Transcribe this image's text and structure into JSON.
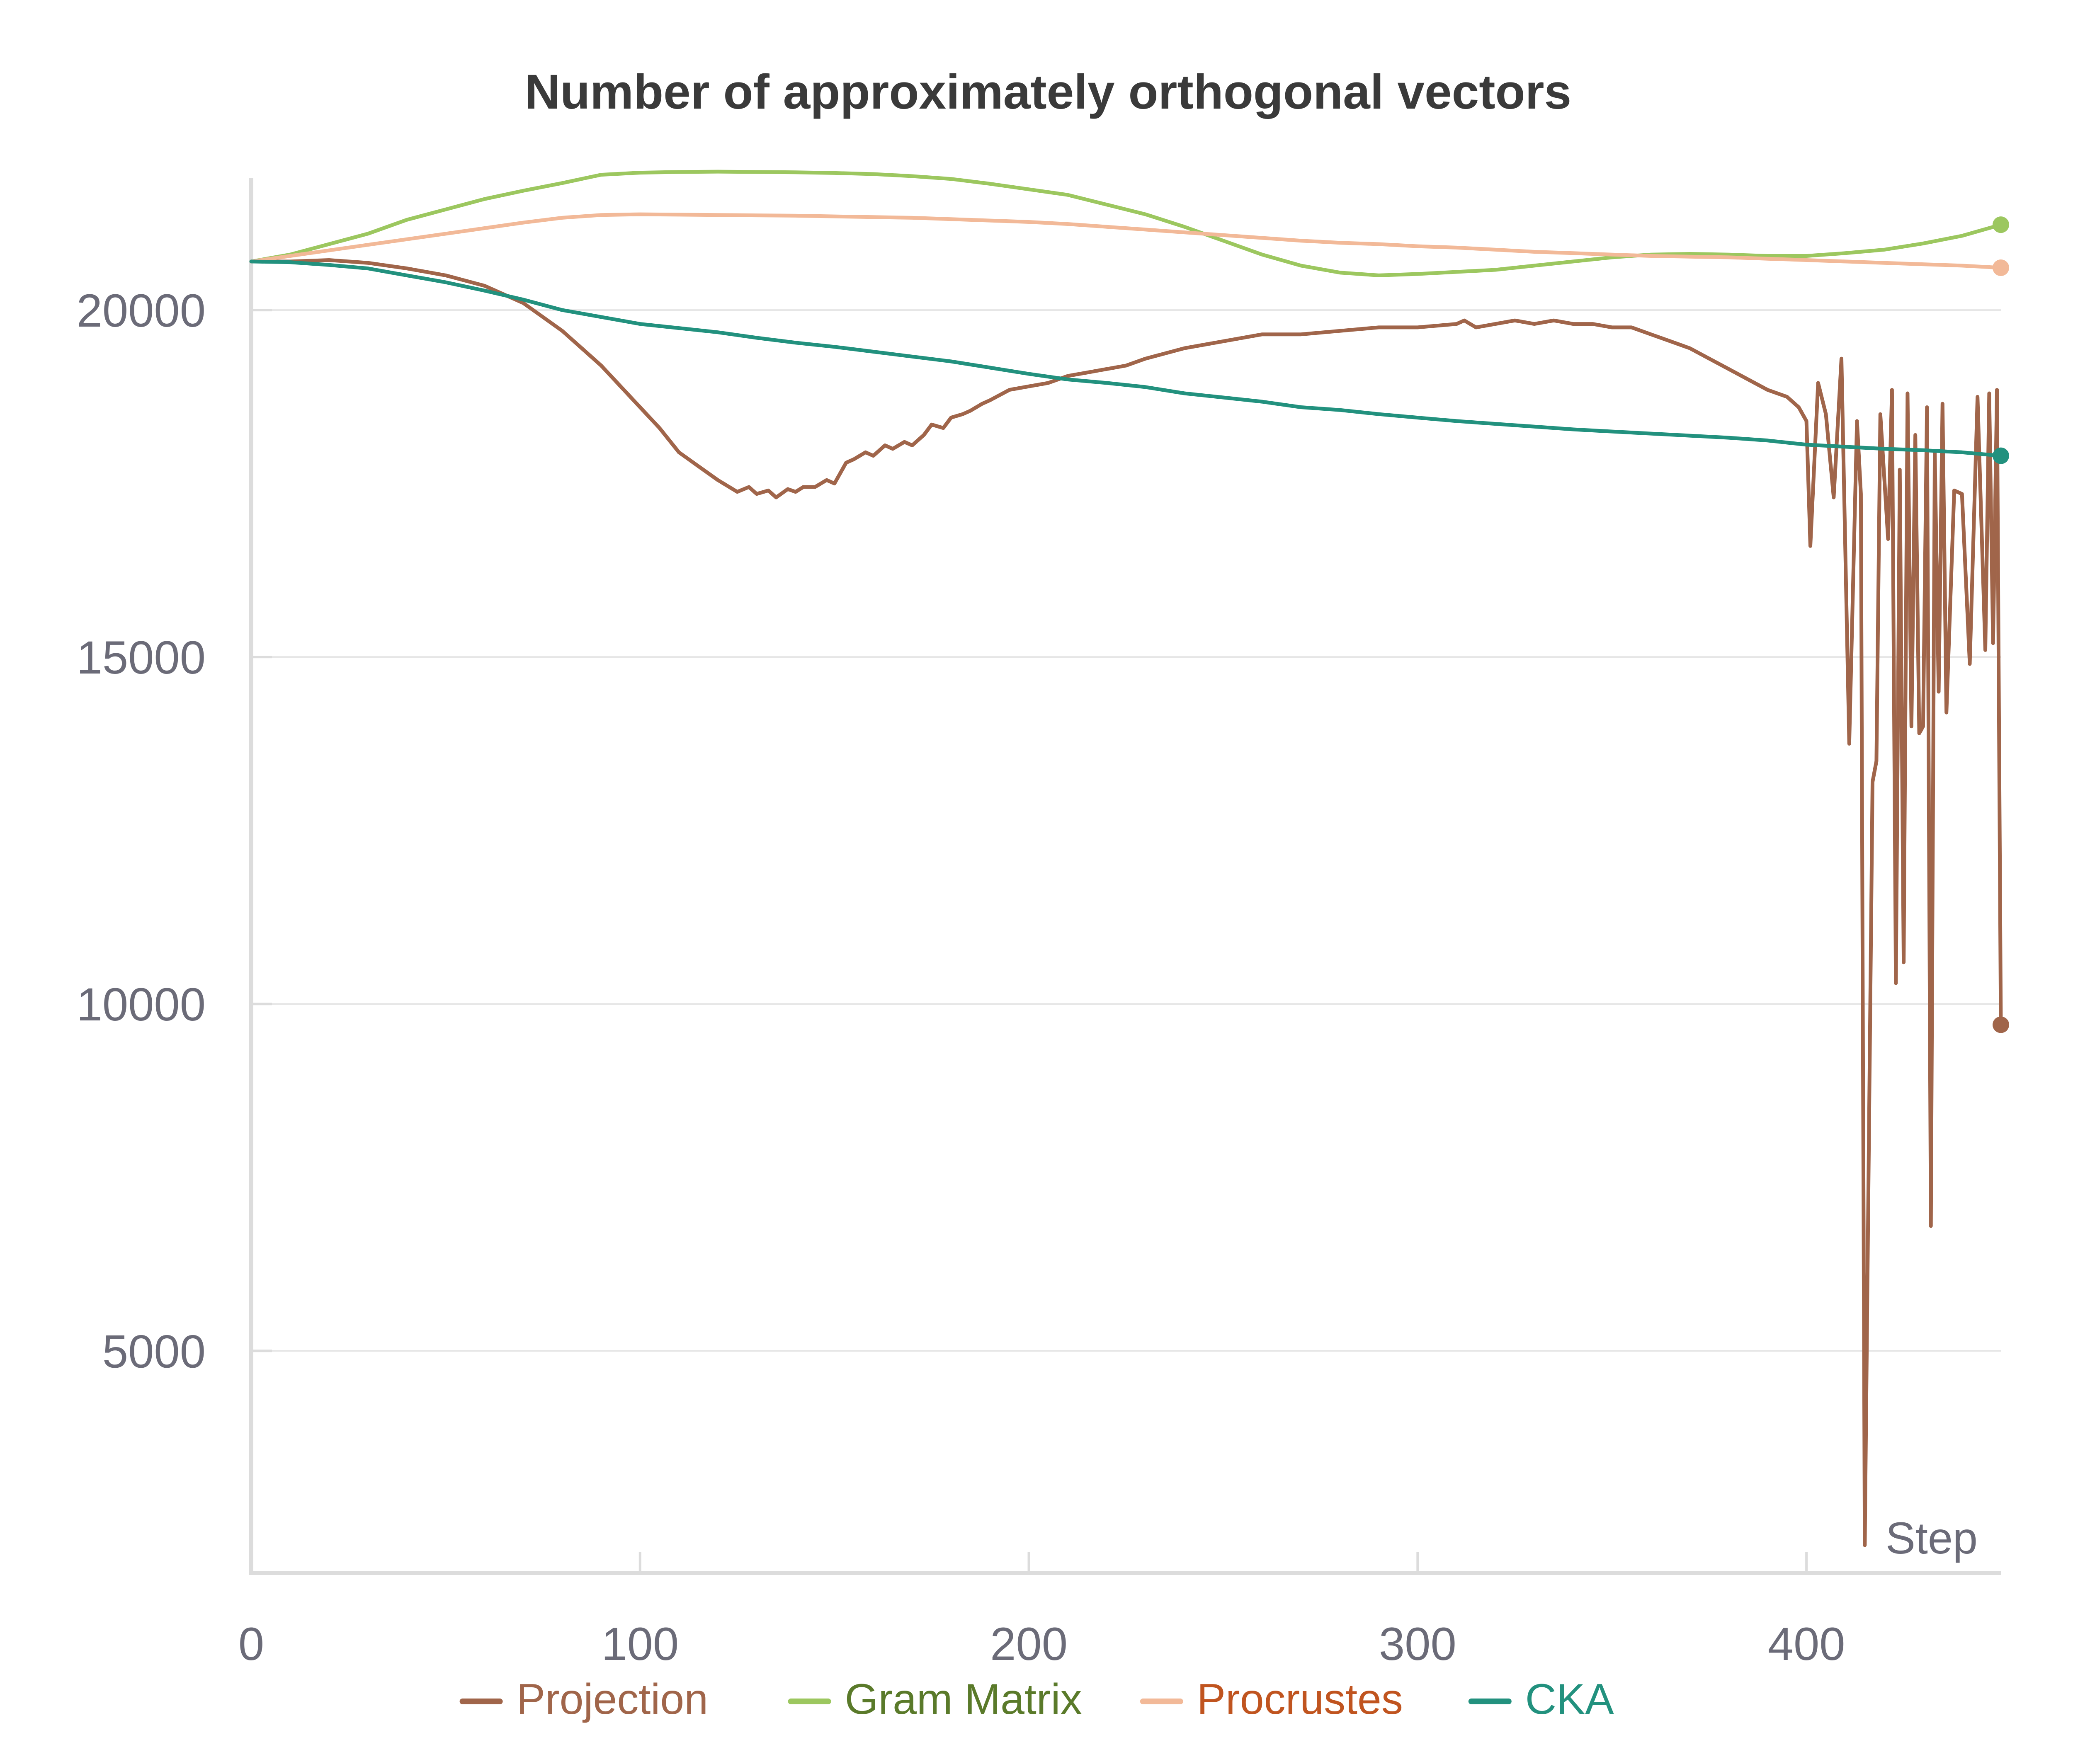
{
  "chart_data": {
    "type": "line",
    "title": "Number of approximately orthogonal vectors",
    "xlabel": "Step",
    "ylabel": "",
    "xlim": [
      0,
      450
    ],
    "ylim": [
      1800,
      21900
    ],
    "x_ticks": [
      0,
      100,
      200,
      300,
      400
    ],
    "y_ticks": [
      5000,
      10000,
      15000,
      20000
    ],
    "x_tick_labels": [
      "0",
      "100",
      "200",
      "300",
      "400"
    ],
    "y_tick_labels": [
      "5000",
      "10000",
      "15000",
      "20000"
    ],
    "grid": "horizontal",
    "legend_position": "bottom",
    "series": [
      {
        "name": "Projection",
        "color": "#a0654a",
        "legend_text_color": "#a0654a",
        "x": [
          0,
          10,
          20,
          30,
          40,
          50,
          60,
          70,
          80,
          90,
          100,
          105,
          110,
          115,
          120,
          125,
          128,
          130,
          133,
          135,
          138,
          140,
          142,
          145,
          148,
          150,
          153,
          155,
          158,
          160,
          163,
          165,
          168,
          170,
          173,
          175,
          178,
          180,
          183,
          185,
          188,
          190,
          195,
          200,
          205,
          210,
          215,
          220,
          225,
          230,
          240,
          250,
          260,
          270,
          280,
          290,
          300,
          310,
          312,
          315,
          320,
          325,
          330,
          335,
          340,
          345,
          350,
          355,
          360,
          365,
          370,
          375,
          380,
          385,
          390,
          395,
          398,
          400,
          401,
          403,
          405,
          407,
          409,
          411,
          413,
          414,
          415,
          417,
          418,
          419,
          421,
          422,
          423,
          424,
          425,
          426,
          427,
          428,
          429,
          430,
          431,
          432,
          433,
          434,
          435,
          436,
          438,
          440,
          442,
          444,
          446,
          447,
          448,
          449,
          450
        ],
        "y": [
          20700,
          20700,
          20720,
          20680,
          20600,
          20500,
          20350,
          20100,
          19700,
          19200,
          18600,
          18300,
          17950,
          17750,
          17550,
          17380,
          17450,
          17350,
          17400,
          17300,
          17420,
          17380,
          17450,
          17450,
          17550,
          17500,
          17800,
          17850,
          17950,
          17900,
          18050,
          18000,
          18100,
          18050,
          18200,
          18350,
          18300,
          18450,
          18500,
          18550,
          18650,
          18700,
          18850,
          18900,
          18950,
          19050,
          19100,
          19150,
          19200,
          19300,
          19450,
          19550,
          19650,
          19650,
          19700,
          19750,
          19750,
          19800,
          19850,
          19750,
          19800,
          19850,
          19800,
          19850,
          19800,
          19800,
          19750,
          19750,
          19650,
          19550,
          19450,
          19300,
          19150,
          19000,
          18850,
          18750,
          18600,
          18400,
          16600,
          18950,
          18500,
          17300,
          19300,
          13750,
          18400,
          17350,
          2200,
          13200,
          13500,
          18500,
          16700,
          18850,
          10300,
          17700,
          10600,
          18800,
          14000,
          18200,
          13900,
          14000,
          18600,
          6800,
          17950,
          14500,
          18650,
          14200,
          17400,
          17350,
          14900,
          18750,
          15100,
          18800,
          15200,
          18850,
          9700
        ]
      },
      {
        "name": "Gram Matrix",
        "color": "#9cc75f",
        "legend_text_color": "#5a7a2a",
        "x": [
          0,
          10,
          20,
          30,
          40,
          50,
          60,
          70,
          80,
          90,
          100,
          110,
          120,
          130,
          140,
          150,
          160,
          170,
          180,
          190,
          200,
          210,
          220,
          230,
          240,
          250,
          260,
          270,
          280,
          290,
          300,
          310,
          320,
          330,
          340,
          350,
          360,
          370,
          380,
          390,
          400,
          410,
          420,
          430,
          440,
          450
        ],
        "y": [
          20700,
          20800,
          20950,
          21100,
          21300,
          21450,
          21600,
          21720,
          21830,
          21950,
          21980,
          21990,
          21995,
          21990,
          21985,
          21975,
          21960,
          21930,
          21890,
          21820,
          21740,
          21660,
          21520,
          21380,
          21200,
          21000,
          20800,
          20640,
          20540,
          20500,
          20520,
          20550,
          20580,
          20640,
          20700,
          20760,
          20800,
          20810,
          20800,
          20780,
          20780,
          20820,
          20870,
          20960,
          21070,
          21230
        ]
      },
      {
        "name": "Procrustes",
        "color": "#f2b998",
        "legend_text_color": "#c0541f",
        "x": [
          0,
          10,
          20,
          30,
          40,
          50,
          60,
          70,
          80,
          90,
          100,
          110,
          120,
          130,
          140,
          150,
          160,
          170,
          180,
          190,
          200,
          210,
          220,
          230,
          240,
          250,
          260,
          270,
          280,
          290,
          300,
          310,
          320,
          330,
          340,
          350,
          360,
          370,
          380,
          390,
          400,
          410,
          420,
          430,
          440,
          450
        ],
        "y": [
          20700,
          20780,
          20860,
          20940,
          21020,
          21100,
          21180,
          21260,
          21330,
          21370,
          21380,
          21375,
          21370,
          21365,
          21360,
          21350,
          21340,
          21330,
          21310,
          21290,
          21270,
          21240,
          21200,
          21160,
          21120,
          21080,
          21040,
          21000,
          20970,
          20950,
          20920,
          20900,
          20870,
          20840,
          20820,
          20800,
          20780,
          20770,
          20760,
          20740,
          20720,
          20700,
          20680,
          20660,
          20640,
          20610
        ]
      },
      {
        "name": "CKA",
        "color": "#22917e",
        "legend_text_color": "#22917e",
        "x": [
          0,
          10,
          20,
          30,
          40,
          50,
          60,
          70,
          80,
          90,
          100,
          110,
          120,
          130,
          140,
          150,
          160,
          170,
          180,
          190,
          200,
          210,
          220,
          230,
          240,
          250,
          260,
          270,
          280,
          290,
          300,
          310,
          320,
          330,
          340,
          350,
          360,
          370,
          380,
          390,
          400,
          410,
          420,
          430,
          440,
          450
        ],
        "y": [
          20700,
          20690,
          20650,
          20600,
          20500,
          20400,
          20280,
          20150,
          20000,
          19900,
          19800,
          19740,
          19680,
          19600,
          19530,
          19470,
          19400,
          19330,
          19260,
          19170,
          19080,
          19000,
          18950,
          18890,
          18800,
          18740,
          18680,
          18600,
          18560,
          18500,
          18450,
          18400,
          18360,
          18320,
          18280,
          18250,
          18220,
          18190,
          18160,
          18120,
          18060,
          18030,
          18000,
          17980,
          17950,
          17900
        ]
      }
    ]
  }
}
